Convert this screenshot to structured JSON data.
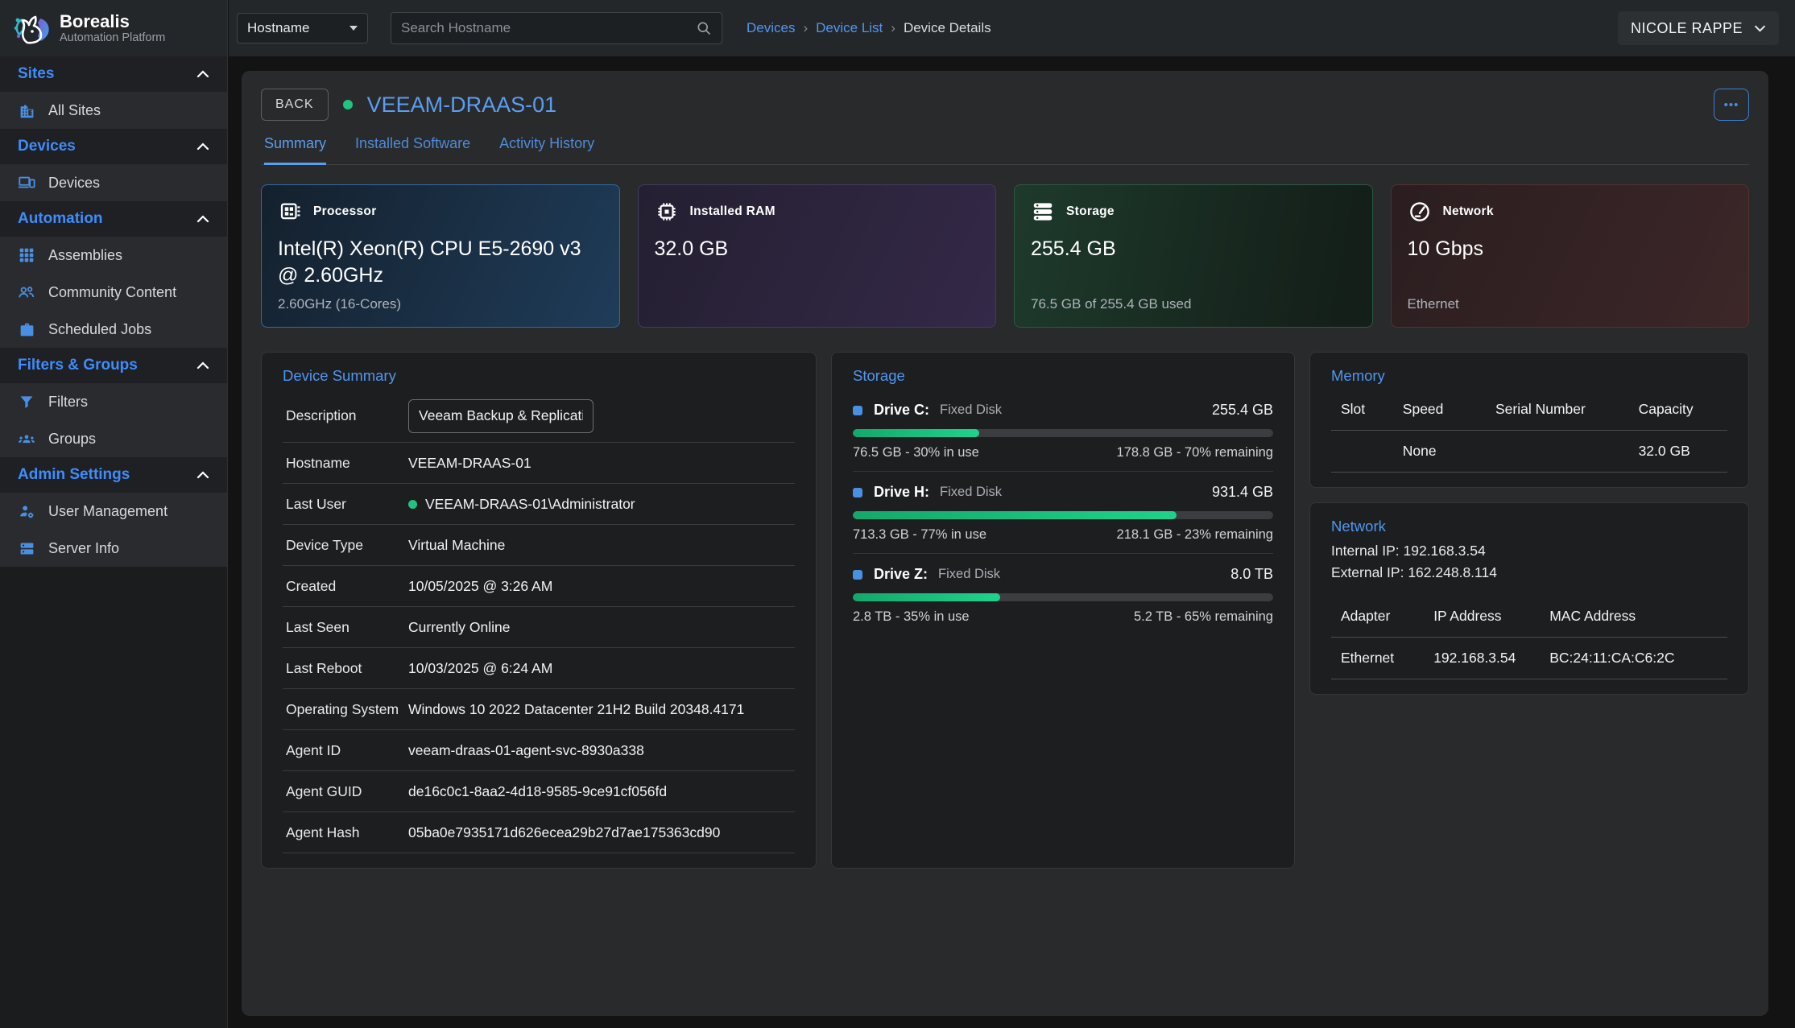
{
  "brand": {
    "name": "Borealis",
    "tagline": "Automation Platform"
  },
  "topbar": {
    "filter_label": "Hostname",
    "search_placeholder": "Search Hostname",
    "breadcrumb_separator": "›",
    "breadcrumbs": [
      "Devices",
      "Device List",
      "Device Details"
    ],
    "user_name": "NICOLE RAPPE"
  },
  "sidebar": {
    "sections": [
      {
        "label": "Sites",
        "items": [
          {
            "label": "All Sites"
          }
        ]
      },
      {
        "label": "Devices",
        "items": [
          {
            "label": "Devices"
          }
        ]
      },
      {
        "label": "Automation",
        "items": [
          {
            "label": "Assemblies"
          },
          {
            "label": "Community Content"
          },
          {
            "label": "Scheduled Jobs"
          }
        ]
      },
      {
        "label": "Filters & Groups",
        "items": [
          {
            "label": "Filters"
          },
          {
            "label": "Groups"
          }
        ]
      },
      {
        "label": "Admin Settings",
        "items": [
          {
            "label": "User Management"
          },
          {
            "label": "Server Info"
          }
        ]
      }
    ]
  },
  "device": {
    "back_label": "BACK",
    "name": "VEEAM-DRAAS-01",
    "status": "online",
    "more_label": "•••",
    "tabs": [
      "Summary",
      "Installed Software",
      "Activity History"
    ],
    "active_tab": "Summary"
  },
  "stat_cards": [
    {
      "title": "Processor",
      "value": "Intel(R) Xeon(R) CPU E5-2690 v3 @ 2.60GHz",
      "footer": "2.60GHz (16-Cores)"
    },
    {
      "title": "Installed RAM",
      "value": "32.0 GB",
      "footer": ""
    },
    {
      "title": "Storage",
      "value": "255.4 GB",
      "footer": "76.5 GB of 255.4 GB used"
    },
    {
      "title": "Network",
      "value": "10 Gbps",
      "footer": "Ethernet"
    }
  ],
  "device_summary": {
    "title": "Device Summary",
    "description_label": "Description",
    "description_value": "Veeam Backup & Replication",
    "rows": [
      {
        "label": "Hostname",
        "value": "VEEAM-DRAAS-01"
      },
      {
        "label": "Last User",
        "value": "VEEAM-DRAAS-01\\Administrator"
      },
      {
        "label": "Device Type",
        "value": "Virtual Machine"
      },
      {
        "label": "Created",
        "value": "10/05/2025 @ 3:26 AM"
      },
      {
        "label": "Last Seen",
        "value": "Currently Online"
      },
      {
        "label": "Last Reboot",
        "value": "10/03/2025 @ 6:24 AM"
      },
      {
        "label": "Operating System",
        "value": "Windows 10 2022 Datacenter 21H2 Build 20348.4171"
      },
      {
        "label": "Agent ID",
        "value": "veeam-draas-01-agent-svc-8930a338"
      },
      {
        "label": "Agent GUID",
        "value": "de16c0c1-8aa2-4d18-9585-9ce91cf056fd"
      },
      {
        "label": "Agent Hash",
        "value": "05ba0e7935171d626ecea29b27d7ae175363cd90"
      }
    ]
  },
  "storage_panel": {
    "title": "Storage",
    "drives": [
      {
        "name": "Drive C:",
        "type": "Fixed Disk",
        "size": "255.4 GB",
        "used_percent": 30,
        "used_text": "76.5 GB - 30% in use",
        "remaining_text": "178.8 GB - 70% remaining"
      },
      {
        "name": "Drive H:",
        "type": "Fixed Disk",
        "size": "931.4 GB",
        "used_percent": 77,
        "used_text": "713.3 GB - 77% in use",
        "remaining_text": "218.1 GB - 23% remaining"
      },
      {
        "name": "Drive Z:",
        "type": "Fixed Disk",
        "size": "8.0 TB",
        "used_percent": 35,
        "used_text": "2.8 TB - 35% in use",
        "remaining_text": "5.2 TB - 65% remaining"
      }
    ]
  },
  "memory_panel": {
    "title": "Memory",
    "columns": [
      "Slot",
      "Speed",
      "Serial Number",
      "Capacity"
    ],
    "rows": [
      {
        "slot": "",
        "speed": "None",
        "serial": "",
        "capacity": "32.0 GB"
      }
    ]
  },
  "network_panel": {
    "title": "Network",
    "internal_ip": "Internal IP: 192.168.3.54",
    "external_ip": "External IP: 162.248.8.114",
    "columns": [
      "Adapter",
      "IP Address",
      "MAC Address"
    ],
    "rows": [
      {
        "adapter": "Ethernet",
        "ip": "192.168.3.54",
        "mac": "BC:24:11:CA:C6:2C"
      }
    ]
  },
  "colors": {
    "accent_blue": "#4a90e2",
    "link_blue": "#4f97f0",
    "online_green": "#22c37e",
    "progress_green": "#1db974",
    "page_bg": "#131313",
    "panel_bg": "#1d1e20"
  }
}
